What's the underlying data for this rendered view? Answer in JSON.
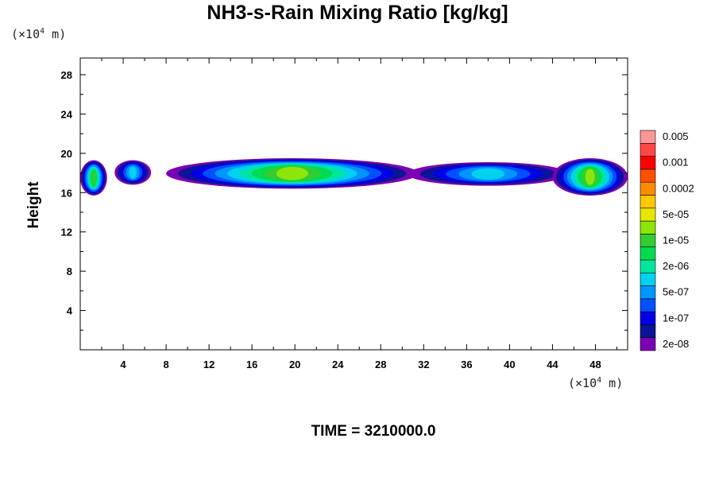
{
  "chart_data": {
    "type": "heatmap",
    "title": "NH3-s-Rain Mixing Ratio [kg/kg]",
    "ylabel": "Height",
    "x_unit": "(×10⁴ m)",
    "y_unit": "(×10⁴ m)",
    "x_ticks": [
      4,
      8,
      12,
      16,
      20,
      24,
      28,
      32,
      36,
      40,
      44,
      48
    ],
    "y_ticks": [
      4,
      8,
      12,
      16,
      20,
      24,
      28
    ],
    "xlim": [
      0,
      51
    ],
    "ylim": [
      0,
      29.7
    ],
    "footer": "TIME = 3210000.0",
    "colorbar": {
      "colors": [
        "#7b00b3",
        "#0a1496",
        "#0000e6",
        "#0050ff",
        "#0096ff",
        "#00d2f0",
        "#00e6a0",
        "#00dc50",
        "#32cd32",
        "#8ce60a",
        "#e6e600",
        "#ffc800",
        "#ff8c00",
        "#ff5000",
        "#ff0000",
        "#ff4646",
        "#ff9696"
      ],
      "labels": [
        "2e-08",
        "1e-07",
        "5e-07",
        "2e-06",
        "1e-05",
        "5e-05",
        "0.0002",
        "0.001",
        "0.005"
      ]
    },
    "bands": [
      {
        "name": "left cloud",
        "x": [
          0,
          2.5
        ],
        "y": [
          15.7,
          19.3
        ],
        "peak_level": 8
      },
      {
        "name": "small cloud",
        "x": [
          3.2,
          6.6
        ],
        "y": [
          16.8,
          19.3
        ],
        "peak_level": 5
      },
      {
        "name": "main layer",
        "x": [
          8,
          31.5
        ],
        "y": [
          16.4,
          19.5
        ],
        "peak_level": 9
      },
      {
        "name": "middle layer",
        "x": [
          30.5,
          45.5
        ],
        "y": [
          16.7,
          19.1
        ],
        "peak_level": 5
      },
      {
        "name": "right cloud",
        "x": [
          44,
          51
        ],
        "y": [
          15.7,
          19.5
        ],
        "peak_level": 9
      }
    ]
  }
}
